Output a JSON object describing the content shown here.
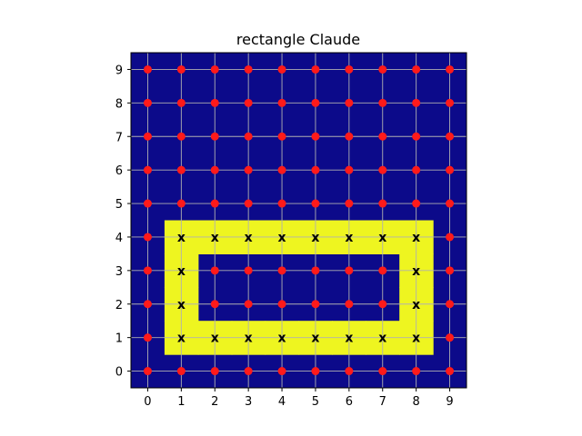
{
  "chart_data": {
    "type": "heatmap",
    "title": "rectangle Claude",
    "xlabel": "",
    "ylabel": "",
    "xlim": [
      -0.5,
      9.5
    ],
    "ylim": [
      -0.5,
      9.5
    ],
    "x_ticks": [
      0,
      1,
      2,
      3,
      4,
      5,
      6,
      7,
      8,
      9
    ],
    "y_ticks": [
      0,
      1,
      2,
      3,
      4,
      5,
      6,
      7,
      8,
      9
    ],
    "grid": true,
    "colors": {
      "background": "#0c0a8a",
      "highlight": "#eef520",
      "dot": "#ff1a1a",
      "grid": "#b0b0b0",
      "mark": "#000000"
    },
    "marker_symbol": "x",
    "highlighted_cells": [
      [
        1,
        1
      ],
      [
        2,
        1
      ],
      [
        3,
        1
      ],
      [
        4,
        1
      ],
      [
        5,
        1
      ],
      [
        6,
        1
      ],
      [
        7,
        1
      ],
      [
        8,
        1
      ],
      [
        1,
        2
      ],
      [
        8,
        2
      ],
      [
        1,
        3
      ],
      [
        8,
        3
      ],
      [
        1,
        4
      ],
      [
        2,
        4
      ],
      [
        3,
        4
      ],
      [
        4,
        4
      ],
      [
        5,
        4
      ],
      [
        6,
        4
      ],
      [
        7,
        4
      ],
      [
        8,
        4
      ]
    ]
  }
}
